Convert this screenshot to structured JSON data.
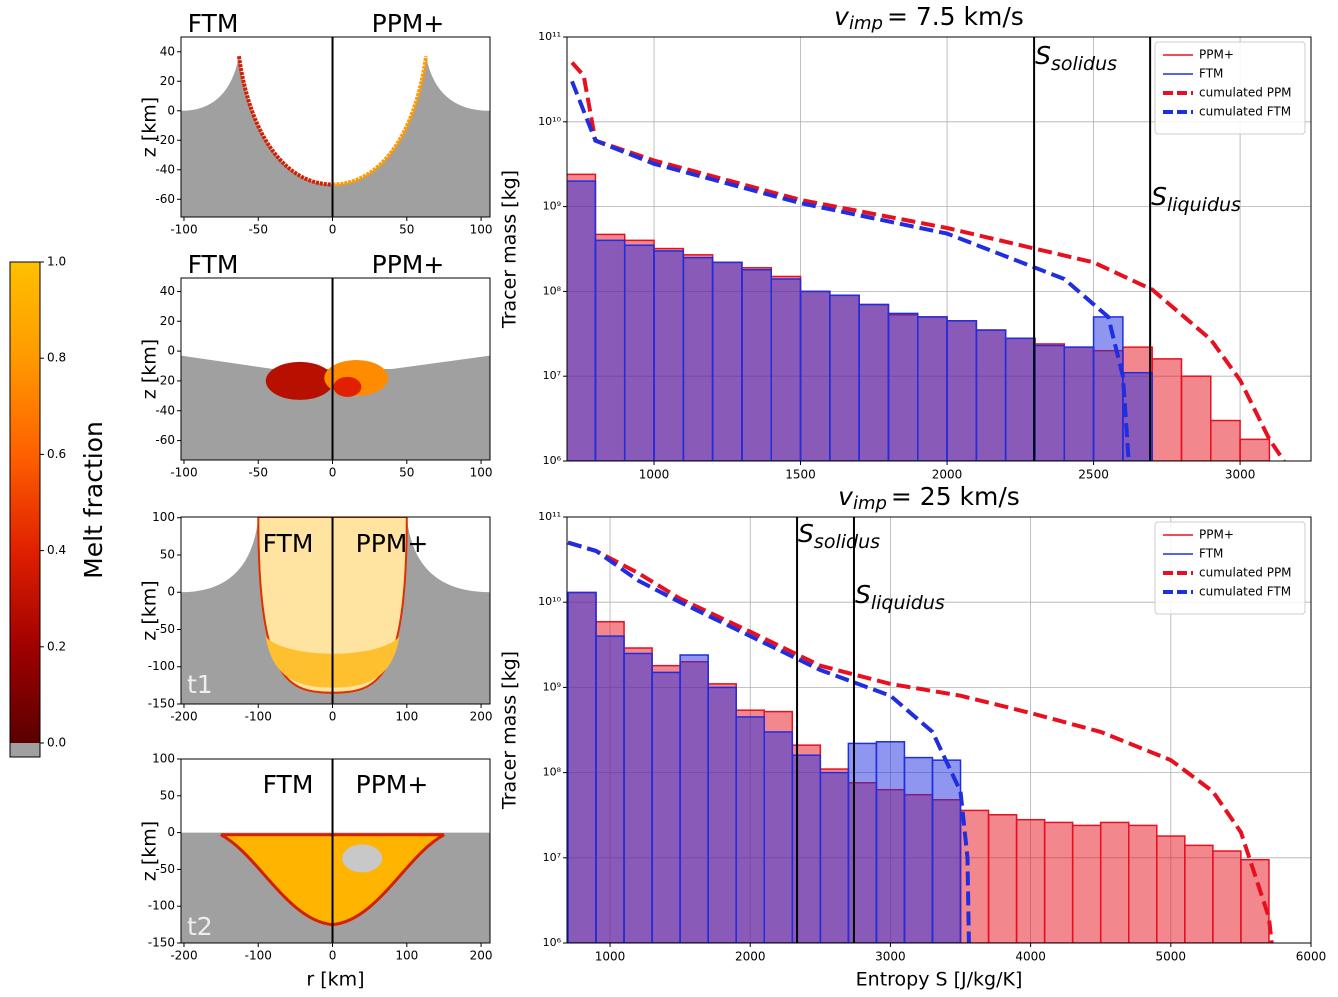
{
  "chart_data": [
    {
      "type": "colorbar",
      "label": "Melt fraction",
      "ylim": [
        0,
        1
      ],
      "yticks": [
        {
          "value": 0,
          "label": "0.0"
        },
        0.2,
        0.4,
        0.6,
        0.8,
        {
          "value": 1,
          "label": "1.0"
        }
      ],
      "colormap": [
        "#5a0000",
        "#a00000",
        "#e02000",
        "#ff6000",
        "#ff9a00",
        "#ffc000"
      ],
      "under_color": "#a0a0a0"
    },
    {
      "type": "image",
      "labels": [
        "FTM",
        "PPM+"
      ],
      "ylabel": "z [km]",
      "xlim": [
        -102,
        106
      ],
      "ylim": [
        -72,
        50
      ],
      "xticks": [
        -100,
        -50,
        0,
        50,
        100
      ],
      "yticks": [
        40,
        20,
        0,
        -20,
        -40,
        -60
      ]
    },
    {
      "type": "image",
      "labels": [
        "FTM",
        "PPM+"
      ],
      "ylabel": "z [km]",
      "xlim": [
        -102,
        106
      ],
      "ylim": [
        -73,
        49
      ],
      "xticks": [
        -100,
        -50,
        0,
        50,
        100
      ],
      "yticks": [
        40,
        20,
        0,
        -20,
        -40,
        -60
      ]
    },
    {
      "type": "image",
      "labels": [
        "FTM",
        "PPM+"
      ],
      "tag": "t1",
      "ylabel": "z [km]",
      "xlim": [
        -204,
        212
      ],
      "ylim": [
        -150,
        101
      ],
      "xticks": [
        -200,
        -100,
        0,
        100,
        200
      ],
      "yticks": [
        100,
        50,
        0,
        -50,
        -100,
        -150
      ]
    },
    {
      "type": "image",
      "labels": [
        "FTM",
        "PPM+"
      ],
      "tag": "t2",
      "ylabel": "z [km]",
      "xlabel": "r [km]",
      "xlim": [
        -204,
        212
      ],
      "ylim": [
        -150,
        100
      ],
      "xticks": [
        -200,
        -100,
        0,
        100,
        200
      ],
      "yticks": [
        100,
        50,
        0,
        -50,
        -100,
        -150
      ]
    },
    {
      "type": "histogram",
      "title": {
        "symbol": "v",
        "subscript": "imp",
        "text": "=  7.5 km/s"
      },
      "ylabel": "Tracer mass [kg]",
      "yscale": "log",
      "grid": true,
      "legend": "upper right",
      "xlim": [
        703,
        3242
      ],
      "ylim": [
        1000000.0,
        100000000000.0
      ],
      "xticks": [
        1000,
        1500,
        2000,
        2500,
        3000
      ],
      "yticks": [
        {
          "value": 1000000.0,
          "label": "10⁶"
        },
        {
          "value": 10000000.0,
          "label": "10⁷"
        },
        {
          "value": 100000000.0,
          "label": "10⁸"
        },
        {
          "value": 1000000000.0,
          "label": "10⁹"
        },
        {
          "value": 10000000000.0,
          "label": "10¹⁰"
        },
        {
          "value": 100000000000.0,
          "label": "10¹¹"
        }
      ],
      "bins": [
        700,
        800,
        900,
        1000,
        1100,
        1200,
        1300,
        1400,
        1500,
        1600,
        1700,
        1800,
        1900,
        2000,
        2100,
        2200,
        2300,
        2400,
        2500,
        2600,
        2700,
        2800,
        2900,
        3000,
        3100
      ],
      "series": [
        {
          "name": "PPM+",
          "color": "#e8101e",
          "values": [
            2400000000.0,
            470000000.0,
            400000000.0,
            320000000.0,
            270000000.0,
            220000000.0,
            190000000.0,
            150000000.0,
            100000000.0,
            90000000.0,
            70000000.0,
            53000000.0,
            50000000.0,
            45000000.0,
            35000000.0,
            28000000.0,
            24000000.0,
            22000000.0,
            20000000.0,
            22000000.0,
            16000000.0,
            10000000.0,
            3000000.0,
            1800000.0
          ]
        },
        {
          "name": "FTM",
          "color": "#1f2ee0",
          "values": [
            2000000000.0,
            400000000.0,
            350000000.0,
            300000000.0,
            250000000.0,
            220000000.0,
            180000000.0,
            140000000.0,
            100000000.0,
            90000000.0,
            70000000.0,
            55000000.0,
            50000000.0,
            45000000.0,
            35000000.0,
            28000000.0,
            23000000.0,
            22000000.0,
            50000000.0,
            11000000.0,
            null,
            null,
            null,
            null
          ]
        }
      ],
      "lines": [
        {
          "name": "cumulated PPM",
          "color": "#e8101e",
          "x": [
            720,
            760,
            800,
            1000,
            1500,
            2000,
            2500,
            2700,
            2900,
            3000,
            3100,
            3150
          ],
          "values": [
            50000000000.0,
            35000000000.0,
            6000000000.0,
            3500000000.0,
            1200000000.0,
            560000000.0,
            220000000.0,
            105000000.0,
            27000000.0,
            9000000.0,
            1800000.0,
            1000000.0
          ]
        },
        {
          "name": "cumulated FTM",
          "color": "#1f2ee0",
          "x": [
            720,
            800,
            1000,
            1500,
            2000,
            2400,
            2550,
            2600,
            2620
          ],
          "values": [
            30000000000.0,
            6000000000.0,
            3200000000.0,
            1100000000.0,
            480000000.0,
            140000000.0,
            50000000.0,
            10000000.0,
            1000000.0
          ]
        }
      ],
      "annotations": [
        {
          "symbol": "S",
          "subscript": "solidus",
          "x": 2297
        },
        {
          "symbol": "S",
          "subscript": "liquidus",
          "x": 2693
        }
      ]
    },
    {
      "type": "histogram",
      "title": {
        "symbol": "v",
        "subscript": "imp",
        "text": "=  25 km/s"
      },
      "ylabel": "Tracer mass [kg]",
      "xlabel": "Entropy S [J/kg/K]",
      "yscale": "log",
      "grid": true,
      "legend": "upper right",
      "xlim": [
        693,
        6000
      ],
      "ylim": [
        1000000.0,
        100000000000.0
      ],
      "xticks": [
        1000,
        2000,
        3000,
        4000,
        5000,
        6000
      ],
      "yticks": [
        {
          "value": 1000000.0,
          "label": "10⁶"
        },
        {
          "value": 10000000.0,
          "label": "10⁷"
        },
        {
          "value": 100000000.0,
          "label": "10⁸"
        },
        {
          "value": 1000000000.0,
          "label": "10⁹"
        },
        {
          "value": 10000000000.0,
          "label": "10¹⁰"
        },
        {
          "value": 100000000000.0,
          "label": "10¹¹"
        }
      ],
      "bins": [
        700,
        900,
        1100,
        1300,
        1500,
        1700,
        1900,
        2100,
        2300,
        2500,
        2700,
        2900,
        3100,
        3300,
        3500,
        3700,
        3900,
        4100,
        4300,
        4500,
        4700,
        4900,
        5100,
        5300,
        5500,
        5700
      ],
      "series": [
        {
          "name": "PPM+",
          "color": "#e8101e",
          "values": [
            13000000000.0,
            5900000000.0,
            2900000000.0,
            1800000000.0,
            2000000000.0,
            1100000000.0,
            540000000.0,
            520000000.0,
            210000000.0,
            110000000.0,
            76000000.0,
            63000000.0,
            55000000.0,
            48000000.0,
            36000000.0,
            32000000.0,
            28000000.0,
            26000000.0,
            24000000.0,
            26000000.0,
            24000000.0,
            18000000.0,
            14000000.0,
            12000000.0,
            9500000.0
          ]
        },
        {
          "name": "FTM",
          "color": "#1f2ee0",
          "values": [
            13000000000.0,
            4000000000.0,
            2500000000.0,
            1500000000.0,
            2400000000.0,
            1000000000.0,
            450000000.0,
            300000000.0,
            160000000.0,
            100000000.0,
            220000000.0,
            230000000.0,
            150000000.0,
            140000000.0,
            null,
            null,
            null,
            null,
            null,
            null,
            null,
            null,
            null,
            null,
            null
          ]
        }
      ],
      "lines": [
        {
          "name": "cumulated PPM",
          "color": "#e8101e",
          "x": [
            700,
            900,
            1200,
            1500,
            2000,
            2500,
            3000,
            3500,
            4000,
            4500,
            5000,
            5300,
            5500,
            5700,
            5720
          ],
          "values": [
            50000000000.0,
            40000000000.0,
            22000000000.0,
            11000000000.0,
            4500000000.0,
            1800000000.0,
            1100000000.0,
            800000000.0,
            500000000.0,
            300000000.0,
            140000000.0,
            60000000.0,
            20000000.0,
            2000000.0,
            1000000.0
          ]
        },
        {
          "name": "cumulated FTM",
          "color": "#1f2ee0",
          "x": [
            700,
            900,
            1200,
            1500,
            2000,
            2500,
            3000,
            3300,
            3500,
            3550,
            3560
          ],
          "values": [
            50000000000.0,
            40000000000.0,
            18000000000.0,
            10000000000.0,
            4000000000.0,
            1600000000.0,
            800000000.0,
            300000000.0,
            60000000.0,
            10000000.0,
            1000000.0
          ]
        }
      ],
      "annotations": [
        {
          "symbol": "S",
          "subscript": "solidus",
          "x": 2334
        },
        {
          "symbol": "S",
          "subscript": "liquidus",
          "x": 2740
        }
      ]
    }
  ]
}
